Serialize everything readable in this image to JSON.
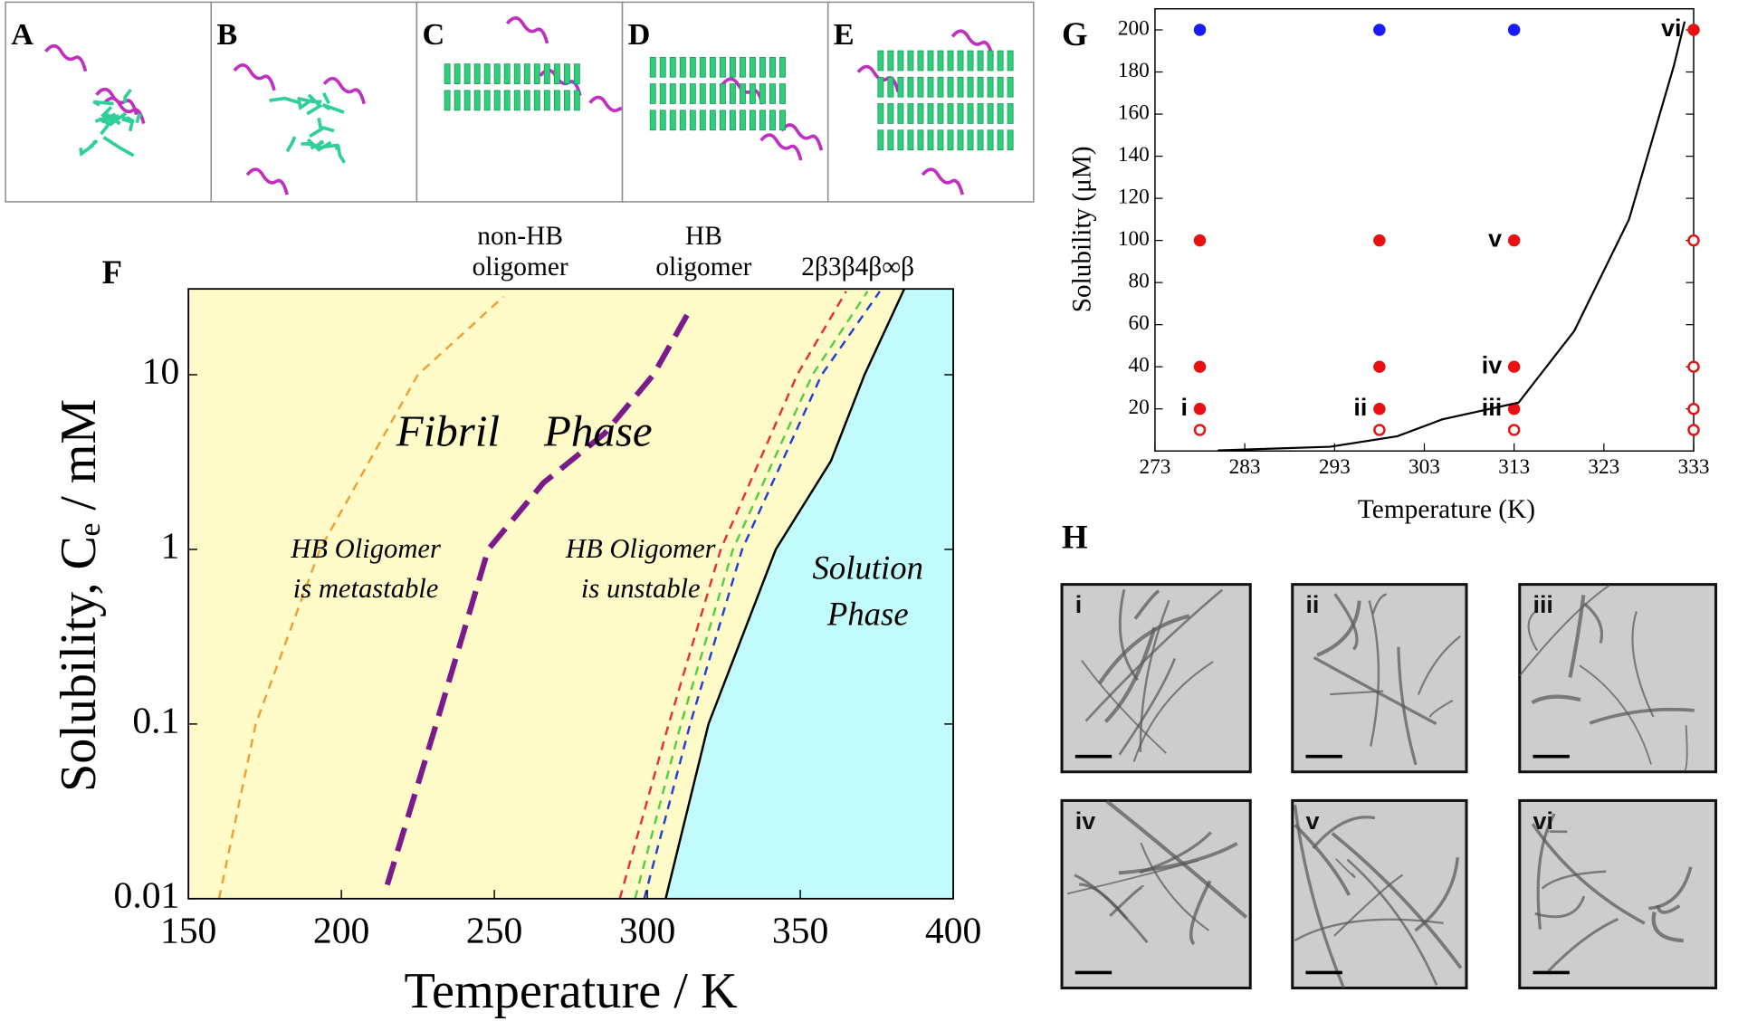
{
  "figure_panels": {
    "structures": [
      "A",
      "B",
      "C",
      "D",
      "E"
    ],
    "micrographs": {
      "label": "H",
      "images": [
        "i",
        "ii",
        "iii",
        "iv",
        "v",
        "vi"
      ]
    }
  },
  "chart_data": [
    {
      "type": "line",
      "panel_label": "F",
      "xlabel": "Temperature / K",
      "ylabel": "Solubility, Cₑ / mM",
      "log_y": true,
      "xlim": [
        150,
        400
      ],
      "ylim": [
        0.01,
        31
      ],
      "xticks": [
        150,
        200,
        250,
        300,
        350,
        400
      ],
      "yticks": [
        0.01,
        0.1,
        1,
        10
      ],
      "region_colors": [
        "#fffbc9",
        "#c2fbfb"
      ],
      "annotations": [
        "Fibril Phase",
        "HB Oligomer",
        "is metastable",
        "HB Oligomer",
        "is unstable",
        "Solution",
        "Phase"
      ],
      "series": [
        {
          "name": "non-HB oligomer",
          "color": "#f0a030",
          "dashed": true,
          "x": [
            160,
            172,
            193,
            225,
            253
          ],
          "values": [
            0.01,
            0.1,
            1,
            10,
            28
          ]
        },
        {
          "name": "HB oligomer",
          "color": "#7b1a8a",
          "dashed": true,
          "x": [
            215,
            231,
            248,
            266,
            286,
            302,
            313
          ],
          "values": [
            0.012,
            0.1,
            1,
            2.4,
            4.6,
            10,
            22
          ]
        },
        {
          "name": "2β",
          "color": "#e83030",
          "dashed": true,
          "x": [
            291,
            307,
            324,
            349,
            365
          ],
          "values": [
            0.01,
            0.1,
            1,
            10,
            30
          ]
        },
        {
          "name": "3β",
          "color": "#50d040",
          "dashed": true,
          "x": [
            296,
            311,
            328,
            354,
            372
          ],
          "values": [
            0.01,
            0.1,
            1,
            10,
            30
          ]
        },
        {
          "name": "4β",
          "color": "#2040d0",
          "dashed": true,
          "x": [
            299,
            314,
            331,
            357,
            376
          ],
          "values": [
            0.01,
            0.1,
            1,
            10,
            30
          ]
        },
        {
          "name": "∞β",
          "color": "#000000",
          "dashed": false,
          "x": [
            306,
            320,
            342,
            360,
            371,
            384
          ],
          "values": [
            0.01,
            0.1,
            1,
            3.2,
            10,
            31
          ]
        }
      ]
    },
    {
      "type": "scatter",
      "panel_label": "G",
      "xlabel": "Temperature (K)",
      "ylabel": "Solubility (μM)",
      "xlim": [
        273,
        333
      ],
      "ylim": [
        0,
        210
      ],
      "xticks": [
        273,
        283,
        293,
        303,
        313,
        323,
        333
      ],
      "yticks": [
        20,
        40,
        60,
        80,
        100,
        120,
        140,
        160,
        180,
        200
      ],
      "series": [
        {
          "marker": "filled",
          "color": "#1a1aff",
          "x": [
            278,
            298,
            313
          ],
          "values": [
            200,
            200,
            200
          ]
        },
        {
          "marker": "filled",
          "color": "#e81010",
          "x": [
            278,
            298,
            313,
            313,
            313,
            333,
            278,
            278,
            298,
            298
          ],
          "values": [
            20,
            20,
            20,
            40,
            100,
            200,
            40,
            100,
            40,
            100
          ],
          "point_labels": [
            "i",
            "ii",
            "iii",
            "iv",
            "v",
            "vi",
            null,
            null,
            null,
            null
          ]
        },
        {
          "marker": "open",
          "color": "#e81010",
          "x": [
            278,
            298,
            313,
            333,
            333,
            333,
            333
          ],
          "values": [
            10,
            10,
            10,
            100,
            40,
            20,
            10
          ]
        },
        {
          "marker": "line",
          "color": "#000000",
          "x": [
            280,
            292.5,
            300,
            305,
            313.5,
            319.7,
            325.8,
            330.8,
            332
          ],
          "values": [
            0.3,
            2,
            7,
            15,
            23,
            57,
            110,
            183,
            204
          ]
        }
      ]
    }
  ]
}
